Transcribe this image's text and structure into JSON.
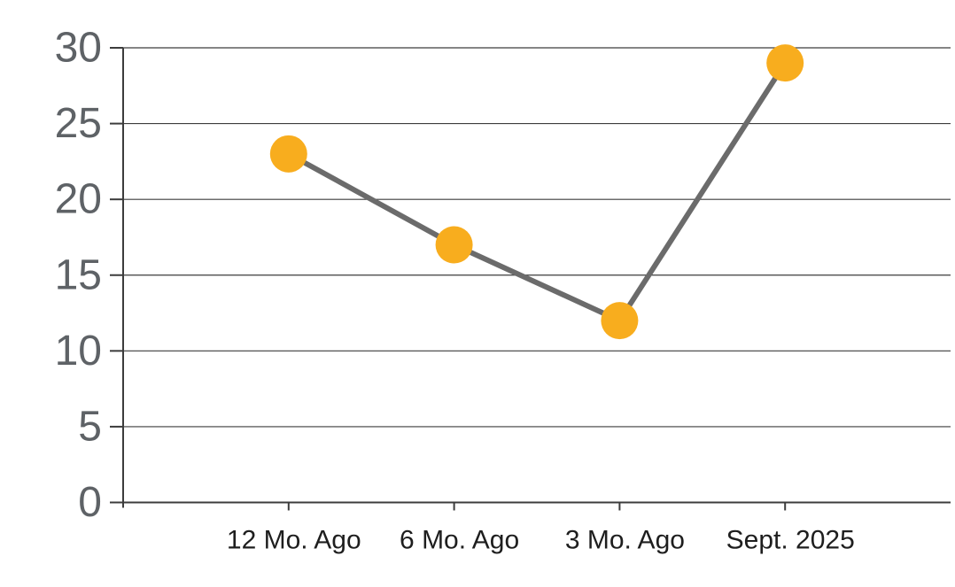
{
  "page": {
    "background": "#ffffff"
  },
  "chart_data": {
    "type": "line",
    "title": "",
    "xlabel": "",
    "ylabel": "",
    "categories": [
      "12 Mo. Ago",
      "6 Mo. Ago",
      "3 Mo. Ago",
      "Sept. 2025"
    ],
    "series": [
      {
        "name": "values",
        "values": [
          23,
          17,
          12,
          29
        ]
      }
    ],
    "ylim": [
      0,
      30
    ],
    "ytick_step": 5,
    "ytick_labels": [
      "0",
      "5",
      "10",
      "15",
      "20",
      "25",
      "30"
    ],
    "grid": "horizontal",
    "legend_position": "none",
    "marker_shape": "circle",
    "colors": {
      "marker": "#F8AD1E",
      "line": "#6B6B6B",
      "gridline": "#3C3C3C",
      "axis": "#3C3C3C",
      "y_tick_label": "#5E6266",
      "x_tick_label": "#1E1E1E",
      "background": "#FFFFFF"
    },
    "style": {
      "line_width": 6,
      "marker_radius": 21,
      "gridline_width": 1.2,
      "axis_width": 2,
      "y_label_font_size": 48,
      "x_label_font_size": 30
    }
  }
}
